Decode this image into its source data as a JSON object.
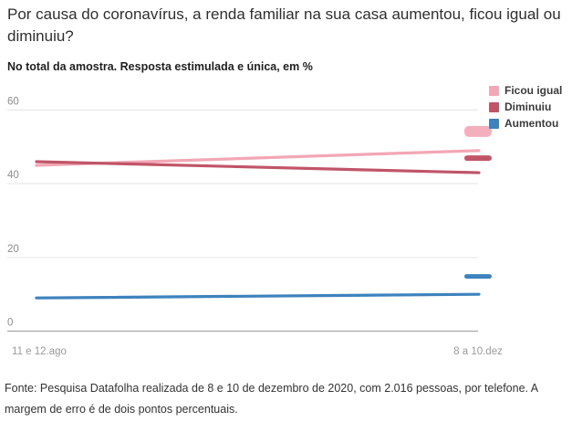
{
  "title": "Por causa do coronavírus, a renda familiar na sua casa aumentou, ficou igual ou diminuiu?",
  "subtitle": "No total da amostra. Resposta estimulada e única, em %",
  "legend": [
    {
      "label": "Ficou igual",
      "color": "#F2A7B5"
    },
    {
      "label": "Diminuiu",
      "color": "#C05568"
    },
    {
      "label": "Aumentou",
      "color": "#3D82BD"
    }
  ],
  "chart_data": {
    "type": "line",
    "categories": [
      "11 e 12.ago",
      "8 a 10.dez"
    ],
    "series": [
      {
        "name": "Ficou igual",
        "color": "#F2A7B5",
        "values": [
          45,
          49
        ]
      },
      {
        "name": "Diminuiu",
        "color": "#C05568",
        "values": [
          46,
          43
        ]
      },
      {
        "name": "Aumentou",
        "color": "#3D82BD",
        "values": [
          9,
          10
        ]
      }
    ],
    "title": "Por causa do coronavírus, a renda familiar na sua casa aumentou, ficou igual ou diminuiu?",
    "xlabel": "",
    "ylabel": "",
    "ylim": [
      0,
      60
    ],
    "yticks": [
      0,
      20,
      40,
      60
    ],
    "grid": "horizontal",
    "legend_position": "top-right",
    "end_markers": true
  },
  "axis": {
    "ytick_labels": [
      "0",
      "20",
      "40",
      "60"
    ],
    "xtick_labels": [
      "11 e 12.ago",
      "8 a 10.dez"
    ]
  },
  "footer": "Fonte: Pesquisa Datafolha realizada de 8 e 10 de dezembro de 2020, com 2.016 pessoas, por telefone. A margem de erro é de dois pontos percentuais.",
  "colors": {
    "grid_line": "#e4e4e4",
    "zero_line": "#9b9b9b",
    "tick_text": "#8c8c8c",
    "category_text": "#9a9a9a"
  }
}
